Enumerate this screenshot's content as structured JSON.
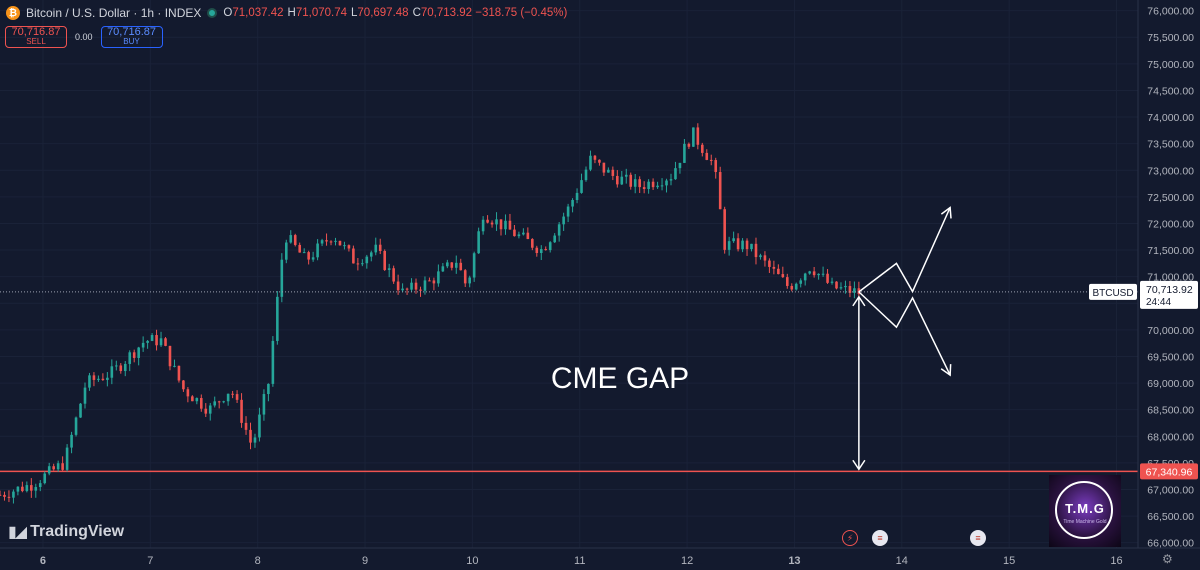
{
  "header": {
    "symbol_title": "Bitcoin / U.S. Dollar · 1h · INDEX",
    "btc_icon": "bitcoin-icon",
    "ohlc": [
      {
        "key": "O",
        "value": "71,037.42"
      },
      {
        "key": "H",
        "value": "71,070.74"
      },
      {
        "key": "L",
        "value": "70,697.48"
      },
      {
        "key": "C",
        "value": "70,713.92 −318.75 (−0.45%)"
      }
    ]
  },
  "trade": {
    "sell_price": "70,716.87",
    "sell_label": "SELL",
    "spread": "0.00",
    "buy_price": "70,716.87",
    "buy_label": "BUY"
  },
  "branding": {
    "tradingview": "TradingView",
    "tmg": "T.M.G",
    "tmg_sub": "Time Machine Gold"
  },
  "colors": {
    "background": "#131a2e",
    "up": "#26a69a",
    "down": "#ef5350",
    "text": "#d1d4dc",
    "annotation": "#ffffff"
  },
  "chart_data": {
    "type": "candlestick",
    "title": "Bitcoin / U.S. Dollar · 1h · INDEX",
    "x_ticks": [
      {
        "day": 6,
        "label": "6"
      },
      {
        "day": 7,
        "label": "7"
      },
      {
        "day": 8,
        "label": "8"
      },
      {
        "day": 9,
        "label": "9"
      },
      {
        "day": 10,
        "label": "10"
      },
      {
        "day": 11,
        "label": "11"
      },
      {
        "day": 12,
        "label": "12"
      },
      {
        "day": 13,
        "label": "13"
      },
      {
        "day": 14,
        "label": "14"
      },
      {
        "day": 15,
        "label": "15"
      },
      {
        "day": 16,
        "label": "16"
      }
    ],
    "y_ticks": [
      "66,000.00",
      "66,500.00",
      "67,000.00",
      "67,500.00",
      "68,000.00",
      "68,500.00",
      "69,000.00",
      "69,500.00",
      "70,000.00",
      "70,500.00",
      "71,000.00",
      "71,500.00",
      "72,000.00",
      "72,500.00",
      "73,000.00",
      "73,500.00",
      "74,000.00",
      "74,500.00",
      "75,000.00",
      "75,500.00",
      "76,000.00"
    ],
    "y_range": [
      65900,
      76200
    ],
    "x_range": [
      5.6,
      16.2
    ],
    "current_price": {
      "value": 70713.92,
      "label": "BTCUSD",
      "price_text": "70,713.92",
      "countdown": "24:44"
    },
    "gap_level": {
      "value": 67340.96,
      "label": "67,340.96"
    },
    "annotation_text": "CME GAP",
    "path_points": [
      {
        "x": 5.6,
        "y": 66900
      },
      {
        "x": 5.9,
        "y": 67100
      },
      {
        "x": 6.2,
        "y": 67500
      },
      {
        "x": 6.4,
        "y": 69000
      },
      {
        "x": 6.65,
        "y": 69200
      },
      {
        "x": 6.95,
        "y": 69800
      },
      {
        "x": 7.1,
        "y": 69800
      },
      {
        "x": 7.3,
        "y": 68900
      },
      {
        "x": 7.55,
        "y": 68500
      },
      {
        "x": 7.75,
        "y": 68900
      },
      {
        "x": 7.95,
        "y": 67800
      },
      {
        "x": 8.1,
        "y": 69000
      },
      {
        "x": 8.25,
        "y": 71800
      },
      {
        "x": 8.45,
        "y": 71300
      },
      {
        "x": 8.7,
        "y": 71800
      },
      {
        "x": 8.9,
        "y": 71300
      },
      {
        "x": 9.1,
        "y": 71500
      },
      {
        "x": 9.35,
        "y": 70700
      },
      {
        "x": 9.6,
        "y": 70900
      },
      {
        "x": 9.85,
        "y": 71300
      },
      {
        "x": 9.95,
        "y": 70800
      },
      {
        "x": 10.1,
        "y": 72200
      },
      {
        "x": 10.4,
        "y": 71800
      },
      {
        "x": 10.65,
        "y": 71500
      },
      {
        "x": 10.9,
        "y": 72300
      },
      {
        "x": 11.1,
        "y": 73200
      },
      {
        "x": 11.3,
        "y": 72900
      },
      {
        "x": 11.55,
        "y": 72700
      },
      {
        "x": 11.85,
        "y": 72900
      },
      {
        "x": 12.05,
        "y": 73700
      },
      {
        "x": 12.25,
        "y": 73100
      },
      {
        "x": 12.35,
        "y": 71600
      },
      {
        "x": 12.55,
        "y": 71600
      },
      {
        "x": 12.75,
        "y": 71200
      },
      {
        "x": 12.95,
        "y": 70800
      },
      {
        "x": 13.15,
        "y": 71200
      },
      {
        "x": 13.35,
        "y": 70800
      },
      {
        "x": 13.6,
        "y": 70700
      }
    ],
    "projection_up": [
      {
        "x": 13.6,
        "y": 70714
      },
      {
        "x": 13.95,
        "y": 71250
      },
      {
        "x": 14.1,
        "y": 70720
      },
      {
        "x": 14.45,
        "y": 72300
      }
    ],
    "projection_down": [
      {
        "x": 13.6,
        "y": 70714
      },
      {
        "x": 13.95,
        "y": 70050
      },
      {
        "x": 14.1,
        "y": 70600
      },
      {
        "x": 14.45,
        "y": 69150
      }
    ],
    "gap_arrow": {
      "x": 13.6,
      "from": 70620,
      "to": 67380
    }
  }
}
